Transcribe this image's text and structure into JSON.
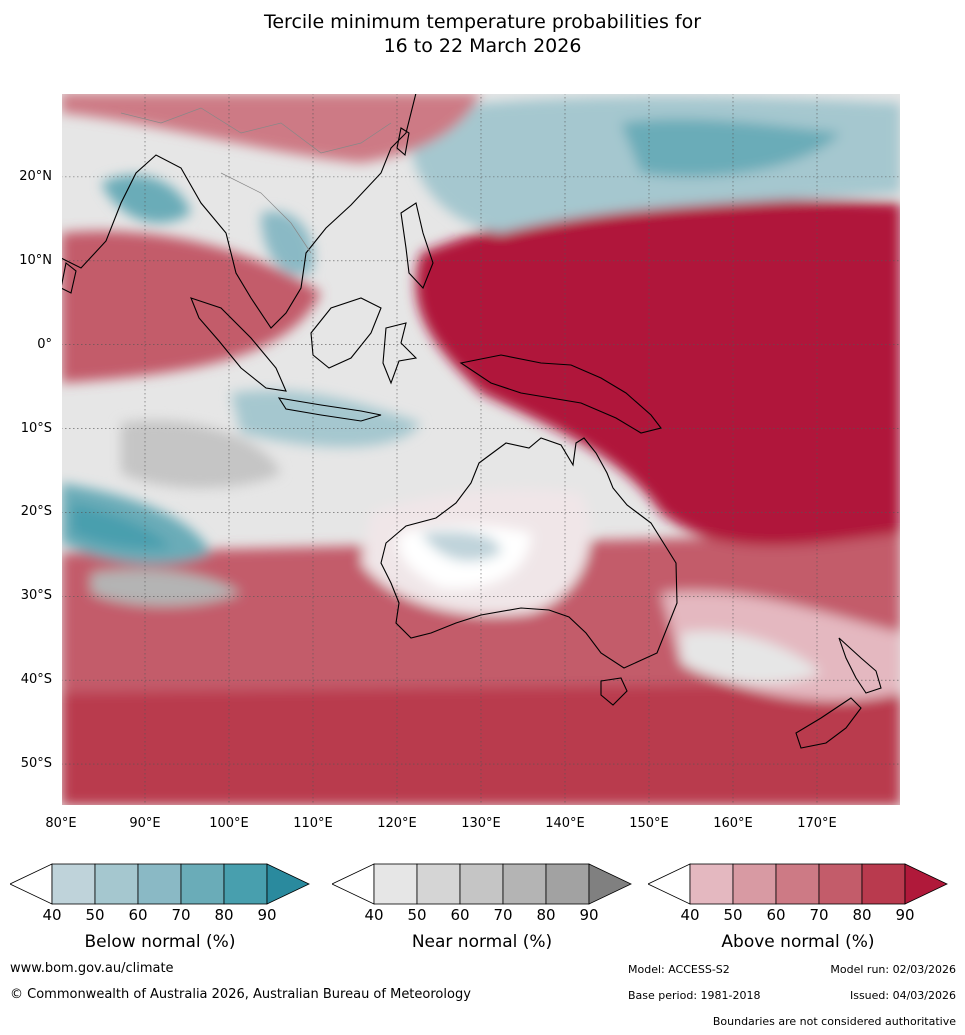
{
  "title": {
    "line1": "Tercile minimum temperature probabilities for",
    "line2": "16 to 22 March 2026"
  },
  "map": {
    "lat_ticks": [
      "20°N",
      "10°N",
      "0°",
      "10°S",
      "20°S",
      "30°S",
      "40°S",
      "50°S"
    ],
    "lon_ticks": [
      "80°E",
      "90°E",
      "100°E",
      "110°E",
      "120°E",
      "130°E",
      "140°E",
      "150°E",
      "160°E",
      "170°E"
    ],
    "lat_values": [
      20,
      10,
      0,
      -10,
      -20,
      -30,
      -40,
      -50
    ],
    "lon_values": [
      80,
      90,
      100,
      110,
      120,
      130,
      140,
      150,
      160,
      170
    ],
    "lon_range": [
      80,
      180
    ],
    "lat_range": [
      -55,
      30
    ],
    "colors": {
      "below": [
        "#bfd3da",
        "#a5c7cf",
        "#8ab9c5",
        "#6aacb8",
        "#489fae",
        "#2a8a9e"
      ],
      "near": [
        "#e6e6e6",
        "#d5d5d5",
        "#c5c5c5",
        "#b4b4b4",
        "#a2a2a2",
        "#808080"
      ],
      "above": [
        "#e4b8c0",
        "#d89aa3",
        "#cd7a85",
        "#c35c6a",
        "#b93a4e",
        "#b0193a"
      ]
    }
  },
  "legends": [
    {
      "label": "Below normal (%)",
      "ticks": [
        "40",
        "50",
        "60",
        "70",
        "80",
        "90"
      ]
    },
    {
      "label": "Near normal (%)",
      "ticks": [
        "40",
        "50",
        "60",
        "70",
        "80",
        "90"
      ]
    },
    {
      "label": "Above normal (%)",
      "ticks": [
        "40",
        "50",
        "60",
        "70",
        "80",
        "90"
      ]
    }
  ],
  "footer": {
    "website": "www.bom.gov.au/climate",
    "copyright": "© Commonwealth of Australia 2026, Australian Bureau of Meteorology",
    "model": "Model: ACCESS-S2",
    "model_run": "Model run: 02/03/2026",
    "base_period": "Base period: 1981-2018",
    "issued": "Issued: 04/03/2026",
    "disclaimer": "Boundaries are not considered authoritative"
  }
}
